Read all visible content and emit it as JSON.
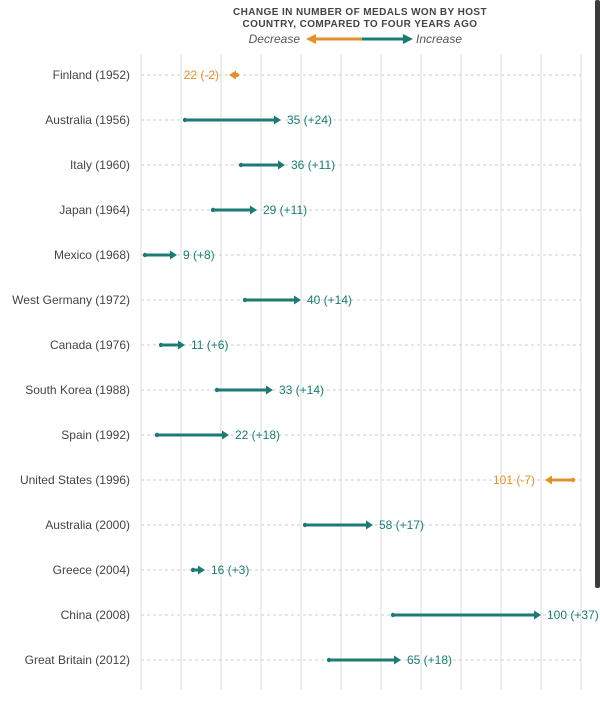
{
  "legend": {
    "title": "CHANGE IN NUMBER OF MEDALS WON BY HOST COUNTRY, COMPARED TO FOUR YEARS AGO",
    "decrease_label": "Decrease",
    "increase_label": "Increase"
  },
  "colors": {
    "increase": "#1d7b73",
    "decrease": "#e0902f",
    "grid": "#dddddd",
    "row_line": "#cccccc",
    "label": "#444444"
  },
  "chart_data": {
    "type": "dumbbell-arrow",
    "title": "CHANGE IN NUMBER OF MEDALS WON BY HOST COUNTRY, COMPARED TO FOUR YEARS AGO",
    "xlabel": "",
    "ylabel": "",
    "xlim": [
      0,
      110
    ],
    "grid": true,
    "legend_position": "top",
    "rows": [
      {
        "label": "Finland (1952)",
        "before": 24,
        "after": 22,
        "value_label": "22 (-2)"
      },
      {
        "label": "Australia (1956)",
        "before": 11,
        "after": 35,
        "value_label": "35 (+24)"
      },
      {
        "label": "Italy (1960)",
        "before": 25,
        "after": 36,
        "value_label": "36 (+11)"
      },
      {
        "label": "Japan (1964)",
        "before": 18,
        "after": 29,
        "value_label": "29 (+11)"
      },
      {
        "label": "Mexico (1968)",
        "before": 1,
        "after": 9,
        "value_label": "9 (+8)"
      },
      {
        "label": "West Germany (1972)",
        "before": 26,
        "after": 40,
        "value_label": "40 (+14)"
      },
      {
        "label": "Canada (1976)",
        "before": 5,
        "after": 11,
        "value_label": "11 (+6)"
      },
      {
        "label": "South Korea (1988)",
        "before": 19,
        "after": 33,
        "value_label": "33 (+14)"
      },
      {
        "label": "Spain (1992)",
        "before": 4,
        "after": 22,
        "value_label": "22 (+18)"
      },
      {
        "label": "United States (1996)",
        "before": 108,
        "after": 101,
        "value_label": "101 (-7)"
      },
      {
        "label": "Australia (2000)",
        "before": 41,
        "after": 58,
        "value_label": "58 (+17)"
      },
      {
        "label": "Greece (2004)",
        "before": 13,
        "after": 16,
        "value_label": "16 (+3)"
      },
      {
        "label": "China (2008)",
        "before": 63,
        "after": 100,
        "value_label": "100 (+37)"
      },
      {
        "label": "Great Britain (2012)",
        "before": 47,
        "after": 65,
        "value_label": "65 (+18)"
      }
    ]
  }
}
